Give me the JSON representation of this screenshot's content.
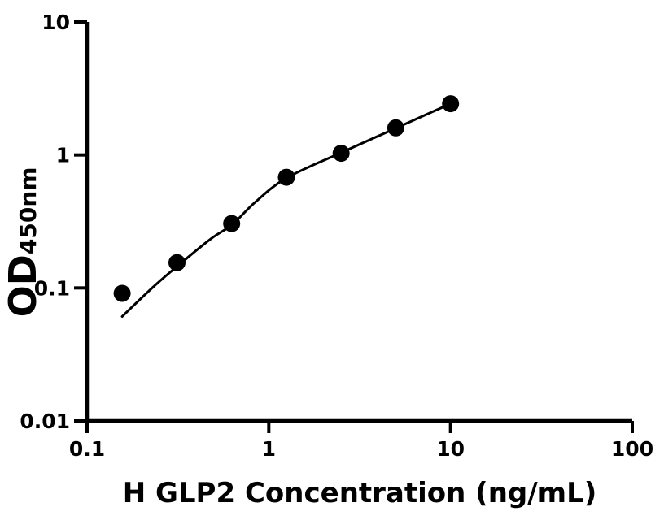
{
  "figure": {
    "background": "#ffffff",
    "axis_color": "#000000",
    "marker_color": "#000000",
    "curve_color": "#000000"
  },
  "chart_data": {
    "type": "scatter",
    "title": "",
    "xlabel": "H GLP2 Concentration (ng/mL)",
    "ylabel": "OD",
    "ylabel_subscript": "450nm",
    "x_scale": "log",
    "y_scale": "log",
    "xlim": [
      0.1,
      100
    ],
    "ylim": [
      0.01,
      10
    ],
    "grid": false,
    "legend": "none",
    "x_ticks": [
      {
        "value": 0.1,
        "label": "0.1"
      },
      {
        "value": 1,
        "label": "1"
      },
      {
        "value": 10,
        "label": "10"
      },
      {
        "value": 100,
        "label": "100"
      }
    ],
    "y_ticks": [
      {
        "value": 0.01,
        "label": "0.01"
      },
      {
        "value": 0.1,
        "label": "0.1"
      },
      {
        "value": 1,
        "label": "1"
      },
      {
        "value": 10,
        "label": "10"
      }
    ],
    "series": [
      {
        "name": "standard-points",
        "type": "scatter",
        "marker": "filled-circle",
        "points": [
          {
            "x": 0.156,
            "y": 0.091
          },
          {
            "x": 0.3125,
            "y": 0.155
          },
          {
            "x": 0.625,
            "y": 0.305
          },
          {
            "x": 1.25,
            "y": 0.68
          },
          {
            "x": 2.5,
            "y": 1.03
          },
          {
            "x": 5,
            "y": 1.6
          },
          {
            "x": 10,
            "y": 2.43
          }
        ]
      },
      {
        "name": "fitted-curve",
        "type": "line",
        "points": [
          {
            "x": 0.156,
            "y": 0.061
          },
          {
            "x": 0.23,
            "y": 0.101
          },
          {
            "x": 0.32,
            "y": 0.149
          },
          {
            "x": 0.48,
            "y": 0.234
          },
          {
            "x": 0.63,
            "y": 0.3
          },
          {
            "x": 0.84,
            "y": 0.44
          },
          {
            "x": 1.25,
            "y": 0.67
          },
          {
            "x": 2.5,
            "y": 1.04
          },
          {
            "x": 5,
            "y": 1.59
          },
          {
            "x": 10,
            "y": 2.43
          }
        ]
      }
    ]
  }
}
